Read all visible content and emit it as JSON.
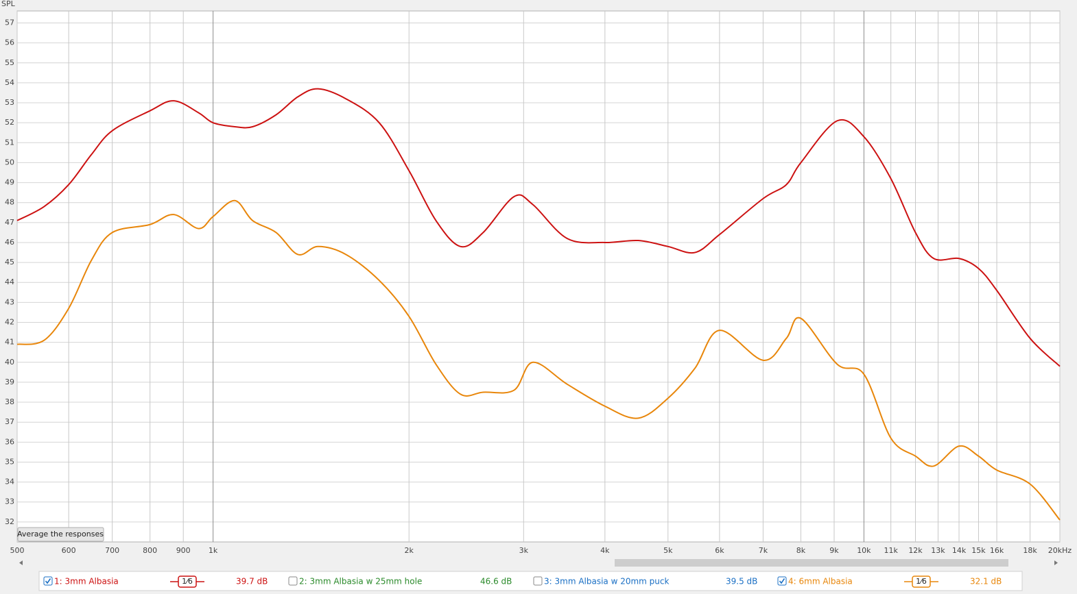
{
  "chart_data": {
    "type": "line",
    "y_label": "SPL",
    "log_x": true,
    "grid": true,
    "xlim": [
      500,
      20000
    ],
    "ylim": [
      31,
      57.6
    ],
    "xticks": [
      500,
      600,
      700,
      800,
      900,
      {
        "value": 1000,
        "label": "1k"
      },
      {
        "value": 2000,
        "label": "2k"
      },
      {
        "value": 3000,
        "label": "3k"
      },
      {
        "value": 4000,
        "label": "4k"
      },
      {
        "value": 5000,
        "label": "5k"
      },
      {
        "value": 6000,
        "label": "6k"
      },
      {
        "value": 7000,
        "label": "7k"
      },
      {
        "value": 8000,
        "label": "8k"
      },
      {
        "value": 9000,
        "label": "9k"
      },
      {
        "value": 10000,
        "label": "10k"
      },
      {
        "value": 11000,
        "label": "11k"
      },
      {
        "value": 12000,
        "label": "12k"
      },
      {
        "value": 13000,
        "label": "13k"
      },
      {
        "value": 14000,
        "label": "14k"
      },
      {
        "value": 15000,
        "label": "15k"
      },
      {
        "value": 16000,
        "label": "16k"
      },
      {
        "value": 18000,
        "label": "18k"
      },
      {
        "value": 20000,
        "label": "20kHz"
      }
    ],
    "yticks": [
      32,
      33,
      34,
      35,
      36,
      37,
      38,
      39,
      40,
      41,
      42,
      43,
      44,
      45,
      46,
      47,
      48,
      49,
      50,
      51,
      52,
      53,
      54,
      55,
      56,
      57
    ],
    "x": [
      500,
      550,
      600,
      650,
      700,
      800,
      870,
      950,
      1000,
      1080,
      1150,
      1250,
      1350,
      1450,
      1600,
      1800,
      2000,
      2200,
      2400,
      2600,
      2900,
      3100,
      3500,
      4000,
      4500,
      5000,
      5500,
      6000,
      7000,
      7600,
      8000,
      9100,
      10000,
      11000,
      12000,
      12800,
      14000,
      15000,
      16000,
      18000,
      20000
    ],
    "series": [
      {
        "name": "1: 3mm Albasia",
        "color": "#cc1111",
        "checked": true,
        "smoothing": "1⁄6",
        "level": "39.7 dB",
        "values": [
          47.1,
          47.8,
          48.9,
          50.4,
          51.6,
          52.6,
          53.1,
          52.5,
          52.0,
          51.8,
          51.8,
          52.4,
          53.3,
          53.7,
          53.2,
          52.0,
          49.6,
          47.1,
          45.8,
          46.5,
          48.3,
          47.9,
          46.2,
          46.0,
          46.1,
          45.8,
          45.5,
          46.4,
          48.2,
          48.9,
          50.0,
          52.1,
          51.3,
          49.2,
          46.5,
          45.2,
          45.2,
          44.7,
          43.6,
          41.2,
          39.8
        ]
      },
      {
        "name": "4: 6mm Albasia",
        "color": "#e8860a",
        "checked": true,
        "smoothing": "1⁄6",
        "level": "32.1 dB",
        "values": [
          40.9,
          41.1,
          42.7,
          45.1,
          46.5,
          46.9,
          47.4,
          46.7,
          47.3,
          48.1,
          47.1,
          46.5,
          45.4,
          45.8,
          45.4,
          44.1,
          42.3,
          39.9,
          38.4,
          38.5,
          38.6,
          40.0,
          38.9,
          37.8,
          37.2,
          38.2,
          39.7,
          41.6,
          40.1,
          41.2,
          42.2,
          39.9,
          39.4,
          36.2,
          35.3,
          34.8,
          35.8,
          35.3,
          34.6,
          33.9,
          32.1
        ]
      }
    ],
    "hidden_traces": [
      {
        "name": "2: 3mm Albasia w 25mm hole",
        "color": "#2a8a2a",
        "checked": false,
        "level": "46.6 dB"
      },
      {
        "name": "3: 3mm Albasia w 20mm puck",
        "color": "#1a6fc4",
        "checked": false,
        "level": "39.5 dB"
      }
    ],
    "button": "Average the responses"
  }
}
